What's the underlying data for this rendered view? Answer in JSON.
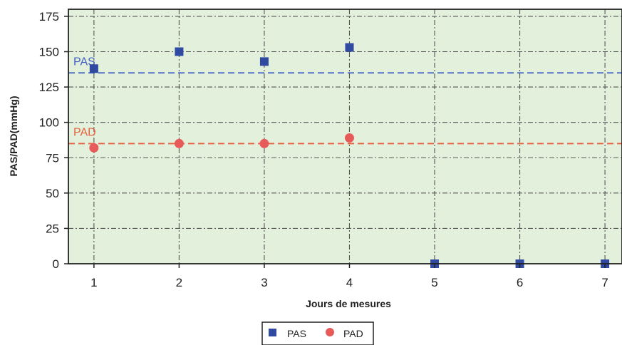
{
  "chart_data": {
    "type": "scatter",
    "title": "",
    "xlabel": "Jours de mesures",
    "ylabel": "PAS/PAD(mmHg)",
    "xlim": [
      0.7,
      7.2
    ],
    "ylim": [
      0,
      180
    ],
    "x_ticks": [
      1,
      2,
      3,
      4,
      5,
      6,
      7
    ],
    "y_ticks": [
      0,
      25,
      50,
      75,
      100,
      125,
      150,
      175
    ],
    "grid": true,
    "background_color": "#e3f0dc",
    "legend_position": "bottom-center",
    "series": [
      {
        "name": "PAS",
        "marker": "square",
        "color": "#2f4aa0",
        "x": [
          1,
          2,
          3,
          4,
          5,
          6,
          7
        ],
        "y": [
          138,
          150,
          143,
          153,
          0,
          0,
          0
        ]
      },
      {
        "name": "PAD",
        "marker": "circle",
        "color": "#e85a5a",
        "x": [
          1,
          2,
          3,
          4
        ],
        "y": [
          82,
          85,
          85,
          89
        ]
      }
    ],
    "reference_lines": [
      {
        "label": "PAS",
        "y": 135,
        "color": "#3f5fc4"
      },
      {
        "label": "PAD",
        "y": 85,
        "color": "#e8603c"
      }
    ]
  }
}
